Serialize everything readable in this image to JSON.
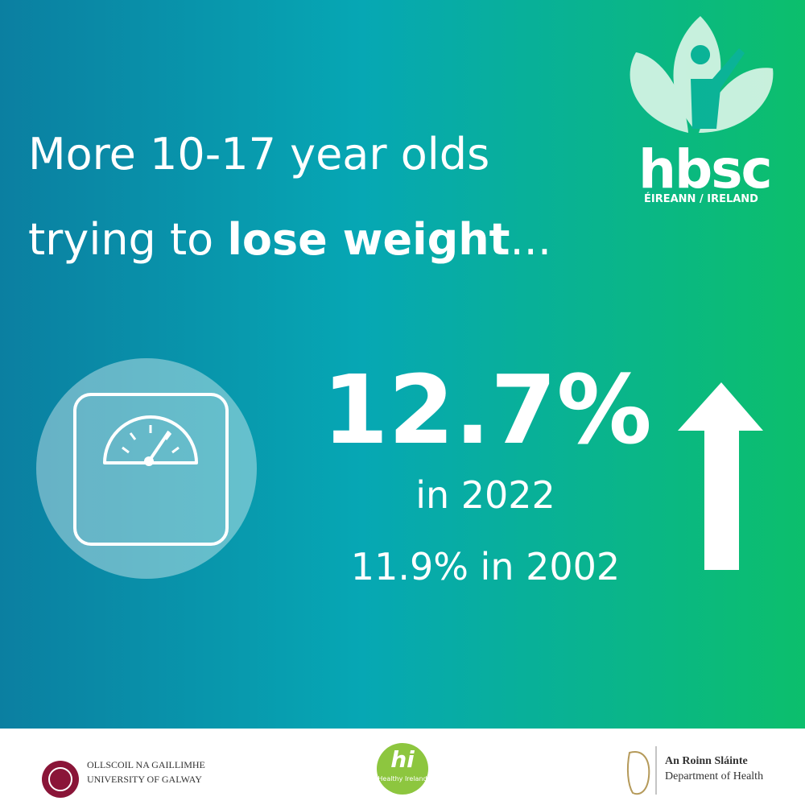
{
  "headline": {
    "line1": "More 10-17 year olds",
    "line2_start": "trying to",
    "line2_bold": "lose weight",
    "line2_end": "..."
  },
  "logo": {
    "name": "hbsc",
    "region": "ÉIREANN / IRELAND"
  },
  "stat": {
    "value": "12.7%",
    "year_text": "in 2022",
    "comparison": "11.9% in 2002"
  },
  "footer": {
    "university": {
      "line1": "OLLSCOIL NA GAILLIMHE",
      "line2": "UNIVERSITY OF GALWAY"
    },
    "healthy_ireland": {
      "mark": "hi",
      "name": "Healthy Ireland"
    },
    "department": {
      "line1": "An Roinn Sláinte",
      "line2": "Department of Health"
    }
  }
}
